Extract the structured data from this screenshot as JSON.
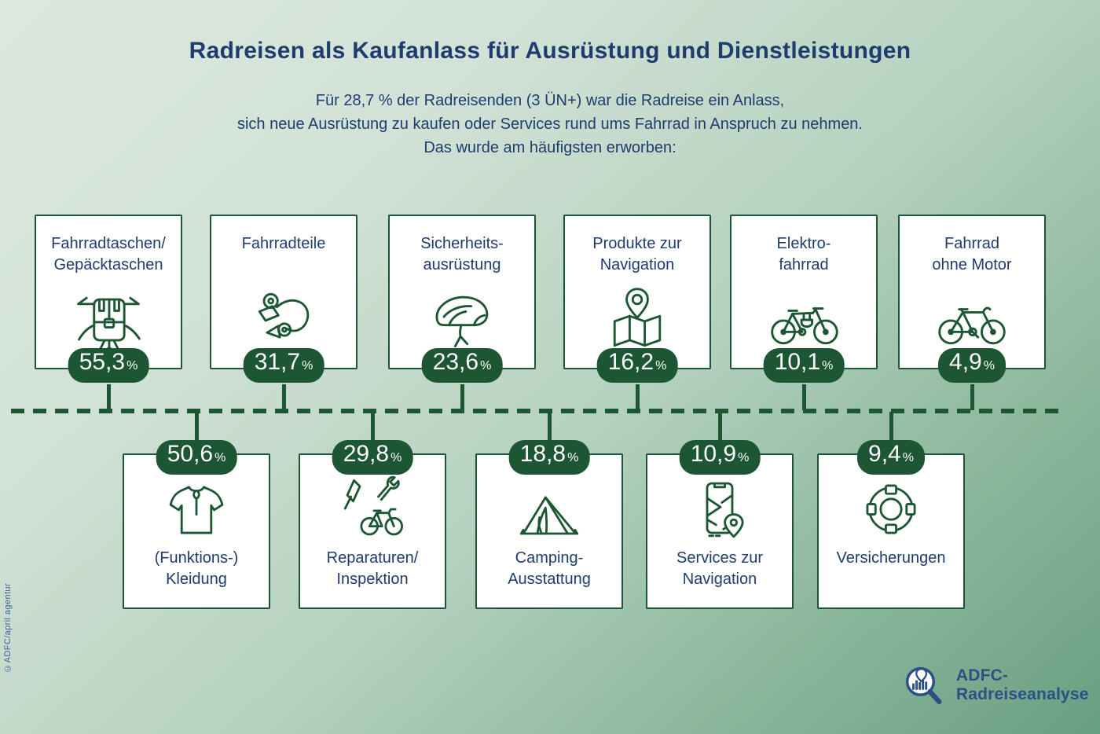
{
  "title": "Radreisen als Kaufanlass für Ausrüstung und Dienstleistungen",
  "subtitle_lines": [
    "Für 28,7 % der Radreisenden (3 ÜN+) war die Radreise ein Anlass,",
    "sich neue Ausrüstung zu kaufen oder Services rund ums Fahrrad in Anspruch zu nehmen.",
    "Das wurde am häufigsten erworben:"
  ],
  "top_row": [
    {
      "label_lines": [
        "Fahrradtaschen/",
        "Gepäcktaschen"
      ],
      "value": "55,3",
      "unit": "%",
      "icon": "pannier-bag-icon"
    },
    {
      "label_lines": [
        "Fahrradteile"
      ],
      "value": "31,7",
      "unit": "%",
      "icon": "derailleur-icon"
    },
    {
      "label_lines": [
        "Sicherheits-",
        "ausrüstung"
      ],
      "value": "23,6",
      "unit": "%",
      "icon": "helmet-icon"
    },
    {
      "label_lines": [
        "Produkte zur",
        "Navigation"
      ],
      "value": "16,2",
      "unit": "%",
      "icon": "map-pin-icon"
    },
    {
      "label_lines": [
        "Elektro-",
        "fahrrad"
      ],
      "value": "10,1",
      "unit": "%",
      "icon": "ebike-icon"
    },
    {
      "label_lines": [
        "Fahrrad",
        "ohne Motor"
      ],
      "value": "4,9",
      "unit": "%",
      "icon": "bicycle-icon"
    }
  ],
  "bottom_row": [
    {
      "label_lines": [
        "(Funktions-)",
        "Kleidung"
      ],
      "value": "50,6",
      "unit": "%",
      "icon": "jersey-icon"
    },
    {
      "label_lines": [
        "Reparaturen/",
        "Inspektion"
      ],
      "value": "29,8",
      "unit": "%",
      "icon": "repair-icon"
    },
    {
      "label_lines": [
        "Camping-",
        "Ausstattung"
      ],
      "value": "18,8",
      "unit": "%",
      "icon": "tent-icon"
    },
    {
      "label_lines": [
        "Services zur",
        "Navigation"
      ],
      "value": "10,9",
      "unit": "%",
      "icon": "phone-navigation-icon"
    },
    {
      "label_lines": [
        "Versicherungen"
      ],
      "value": "9,4",
      "unit": "%",
      "icon": "lifebuoy-icon"
    }
  ],
  "footer": {
    "credit": "©ADFC/april agentur",
    "logo_text": "ADFC-Radreiseanalyse"
  },
  "colors": {
    "green": "#1c5633",
    "navy": "#1e3c6e",
    "logo_blue": "#2b4f87",
    "credit_blue": "#41619b",
    "card_bg": "#ffffff",
    "bg_top": "#dce8de",
    "bg_bottom": "#699f82"
  },
  "chart_data": {
    "type": "bar",
    "title": "Radreisen als Kaufanlass für Ausrüstung und Dienstleistungen",
    "annotation": "Für 28,7 % der Radreisenden (3 ÜN+) war die Radreise ein Anlass, sich neue Ausrüstung zu kaufen oder Services rund ums Fahrrad in Anspruch zu nehmen. Das wurde am häufigsten erworben:",
    "unit": "%",
    "categories": [
      "Fahrradtaschen/Gepäcktaschen",
      "(Funktions-)Kleidung",
      "Fahrradteile",
      "Reparaturen/Inspektion",
      "Sicherheitsausrüstung",
      "Camping-Ausstattung",
      "Produkte zur Navigation",
      "Services zur Navigation",
      "Elektrofahrrad",
      "Versicherungen",
      "Fahrrad ohne Motor"
    ],
    "values": [
      55.3,
      50.6,
      31.7,
      29.8,
      23.6,
      18.8,
      16.2,
      10.9,
      10.1,
      9.4,
      4.9
    ],
    "layout_note": "pictogram cards alternating above/below a dashed timeline; odd ranks on top row, even ranks on bottom row",
    "source_credit": "©ADFC/april agentur",
    "brand": "ADFC-Radreiseanalyse"
  }
}
